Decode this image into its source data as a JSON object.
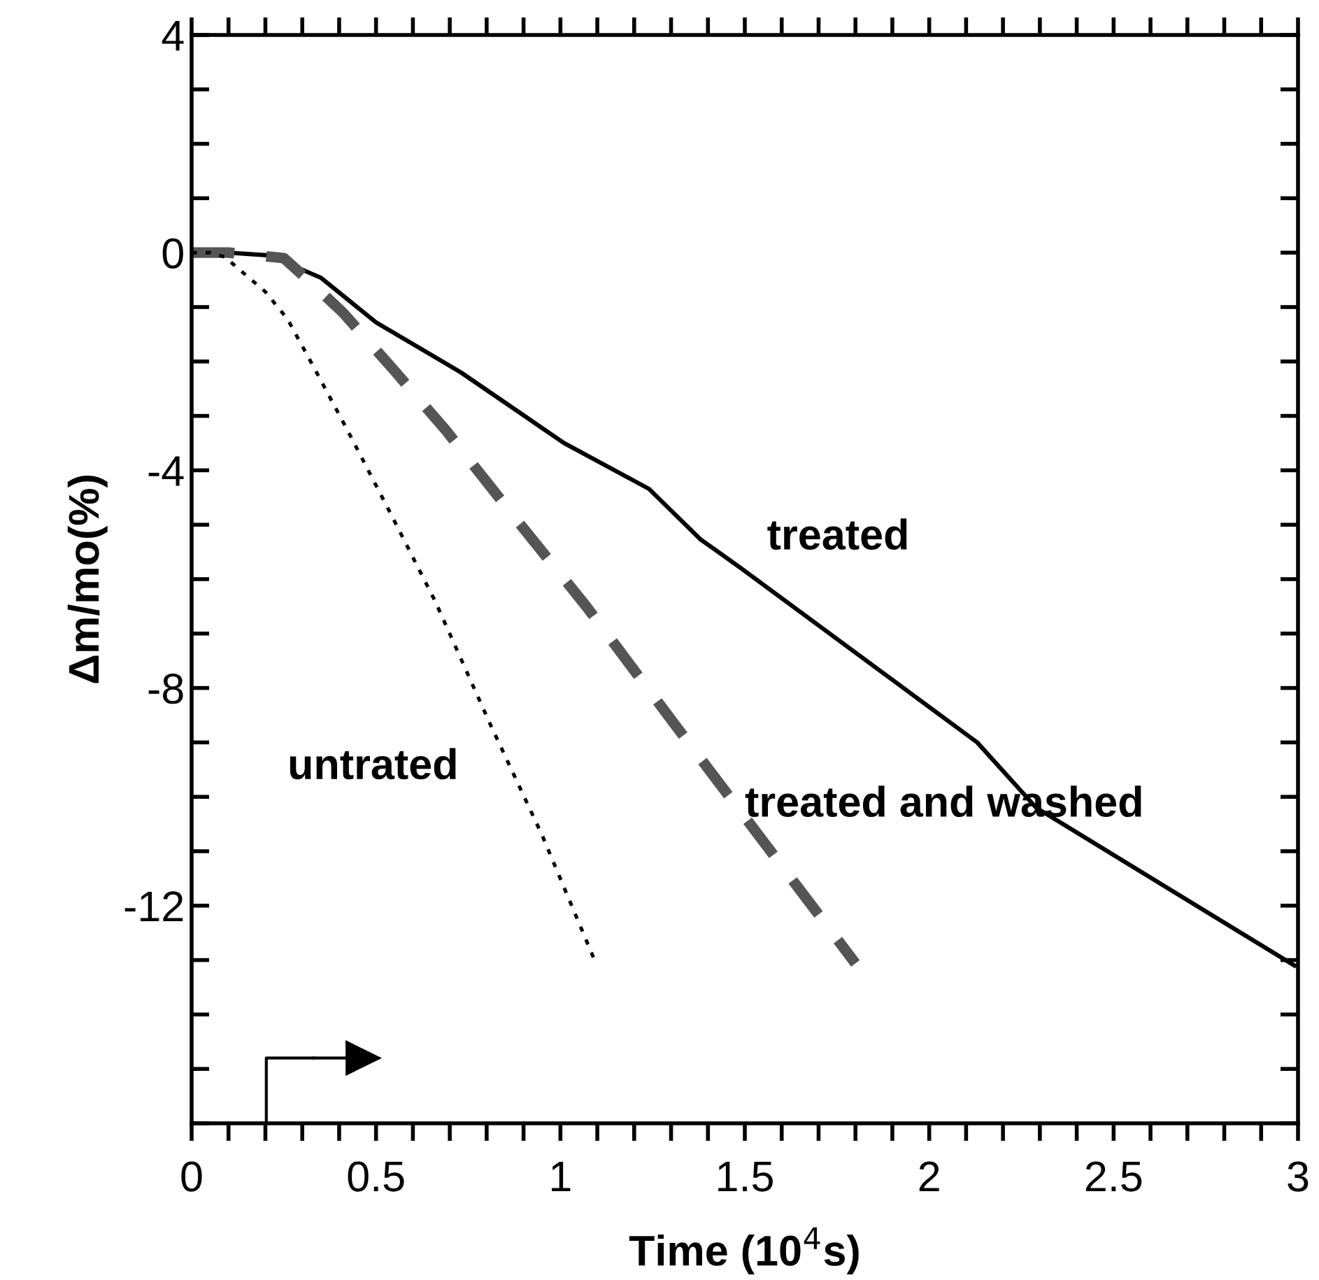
{
  "chart_data": {
    "type": "line",
    "xlabel": "Time (10$^{4}$s)",
    "ylabel": "Δm/mo(%)",
    "xlim": [
      0,
      3
    ],
    "ylim": [
      -16,
      4
    ],
    "xticks": [
      0,
      0.5,
      1,
      1.5,
      2,
      2.5,
      3
    ],
    "yticks": [
      -12,
      -8,
      -4,
      0,
      4
    ],
    "grid": false,
    "legend": false,
    "series": [
      {
        "name": "treated",
        "color": "#000000",
        "line_style": "solid",
        "x": [
          0,
          0.1,
          0.21,
          0.35,
          0.5,
          0.73,
          1.01,
          1.24,
          1.38,
          1.49,
          2.13,
          2.29,
          2.99
        ],
        "values": [
          0,
          0,
          -0.05,
          -0.46,
          -1.28,
          -2.2,
          -3.5,
          -4.34,
          -5.27,
          -5.8,
          -9.0,
          -10.2,
          -13.1
        ]
      },
      {
        "name": "treated and washed",
        "color": "#555555",
        "line_style": "dashed",
        "x": [
          0,
          0.1,
          0.25,
          0.33,
          0.41,
          0.55,
          0.69,
          0.88,
          1.07,
          1.31,
          1.8
        ],
        "values": [
          0,
          0,
          -0.1,
          -0.59,
          -1.1,
          -2.17,
          -3.27,
          -4.9,
          -6.5,
          -8.67,
          -13.06
        ]
      },
      {
        "name": "untrated",
        "color": "#000000",
        "line_style": "dotted",
        "x": [
          0,
          0.05,
          0.09,
          0.2,
          0.26,
          0.33,
          0.42,
          0.54,
          0.66,
          0.81,
          0.95,
          1.09
        ],
        "values": [
          0,
          0,
          -0.08,
          -0.72,
          -1.22,
          -2.09,
          -3.23,
          -4.8,
          -6.4,
          -8.67,
          -10.7,
          -12.96
        ]
      }
    ]
  }
}
